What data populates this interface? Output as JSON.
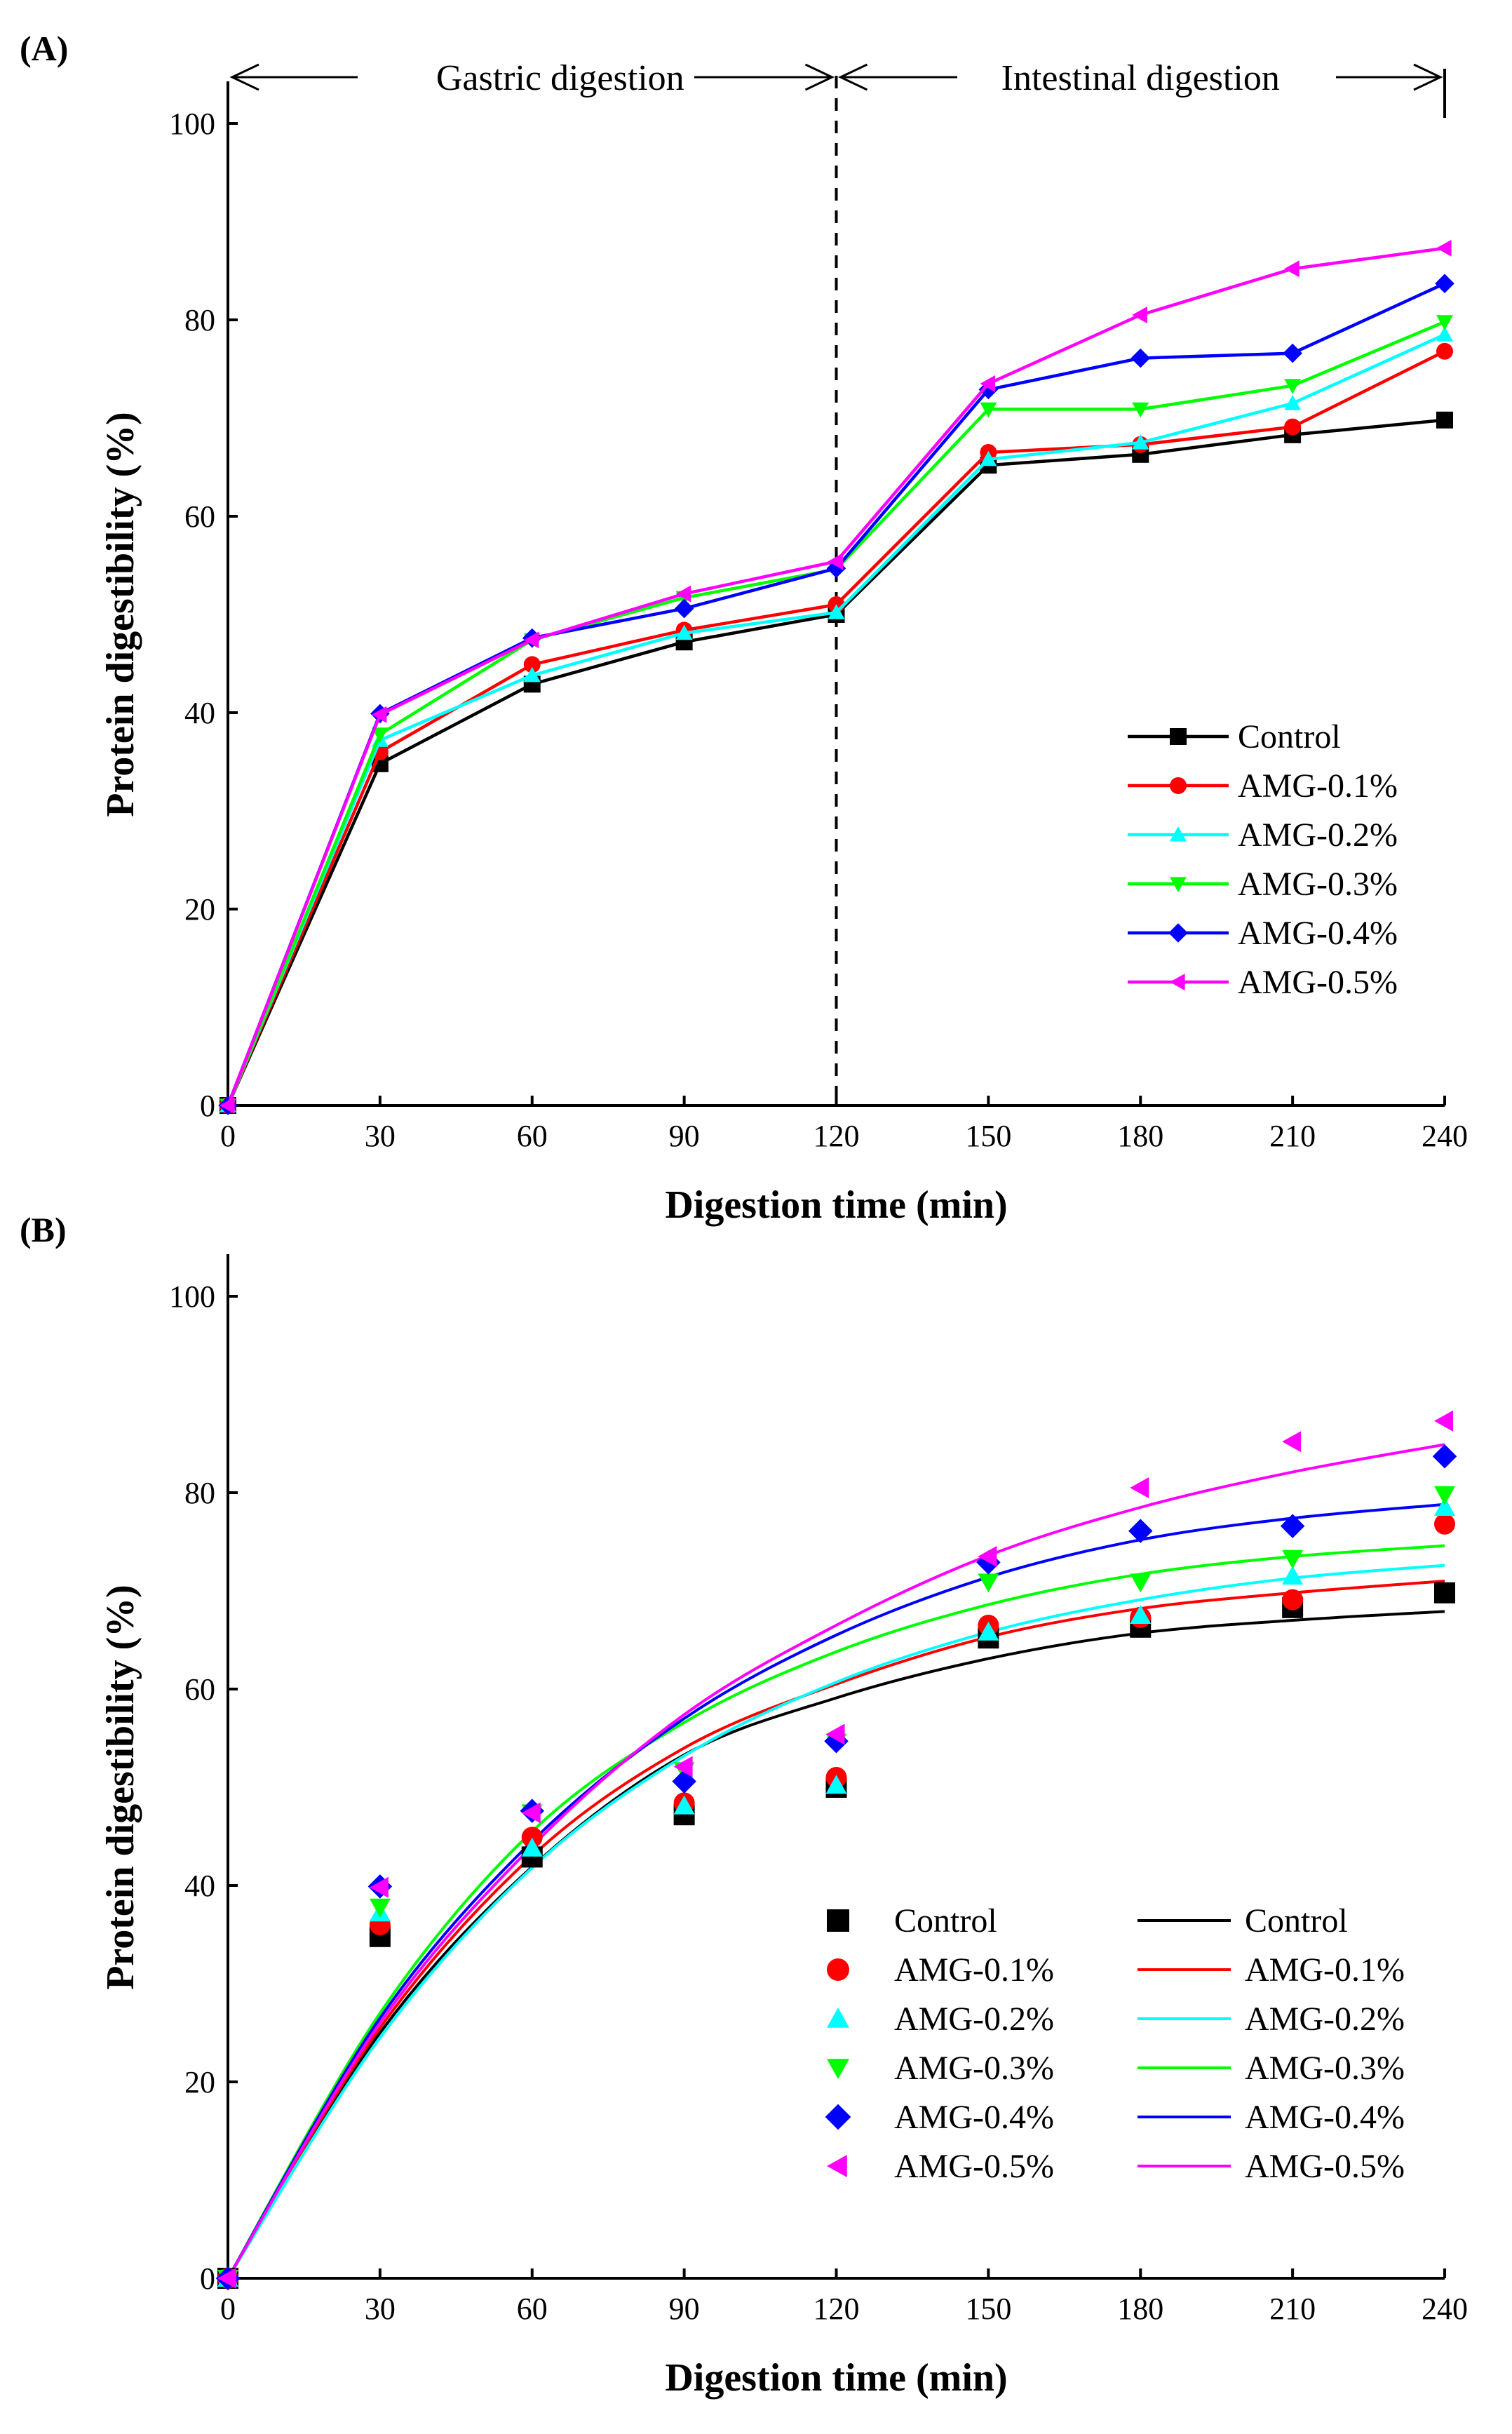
{
  "chart_data": [
    {
      "panel": "(A)",
      "type": "line",
      "xlabel": "Digestion time (min)",
      "ylabel": "Protein digestibility (%)",
      "xlim": [
        0,
        240
      ],
      "ylim": [
        0,
        100
      ],
      "x_ticks": [
        0,
        30,
        60,
        90,
        120,
        150,
        180,
        210,
        240
      ],
      "y_ticks": [
        0,
        20,
        40,
        60,
        80,
        100
      ],
      "annotations": {
        "gastric": "Gastric digestion",
        "intestinal": "Intestinal digestion",
        "divider_x": 120
      },
      "legend_position": "lower-right",
      "x": [
        0,
        30,
        60,
        90,
        120,
        150,
        180,
        210,
        240
      ],
      "series": [
        {
          "name": "Control",
          "color": "#000000",
          "marker": "square",
          "values": [
            0,
            34.8,
            42.9,
            47.2,
            50.0,
            65.2,
            66.3,
            68.3,
            69.8
          ]
        },
        {
          "name": "AMG-0.1%",
          "color": "#ff0000",
          "marker": "circle",
          "values": [
            0,
            36.0,
            44.9,
            48.4,
            51.0,
            66.5,
            67.3,
            69.1,
            76.8
          ]
        },
        {
          "name": "AMG-0.2%",
          "color": "#00ffff",
          "marker": "triangle-up",
          "values": [
            0,
            37.2,
            43.8,
            48.1,
            50.2,
            65.8,
            67.5,
            71.5,
            78.5
          ]
        },
        {
          "name": "AMG-0.3%",
          "color": "#00ff00",
          "marker": "triangle-down",
          "values": [
            0,
            37.8,
            47.4,
            51.7,
            54.6,
            70.9,
            70.9,
            73.3,
            79.8
          ]
        },
        {
          "name": "AMG-0.4%",
          "color": "#0000ff",
          "marker": "diamond",
          "values": [
            0,
            39.9,
            47.6,
            50.6,
            54.7,
            72.9,
            76.1,
            76.6,
            83.7
          ]
        },
        {
          "name": "AMG-0.5%",
          "color": "#ff00ff",
          "marker": "triangle-left",
          "values": [
            0,
            39.8,
            47.4,
            52.1,
            55.4,
            73.5,
            80.5,
            85.2,
            87.3
          ]
        }
      ]
    },
    {
      "panel": "(B)",
      "type": "scatter",
      "xlabel": "Digestion time (min)",
      "ylabel": "Protein digestibility (%)",
      "xlim": [
        0,
        240
      ],
      "ylim": [
        0,
        100
      ],
      "x_ticks": [
        0,
        30,
        60,
        90,
        120,
        150,
        180,
        210,
        240
      ],
      "y_ticks": [
        0,
        20,
        40,
        60,
        80,
        100
      ],
      "legend_position": "lower-right",
      "x": [
        0,
        30,
        60,
        90,
        120,
        150,
        180,
        210,
        240
      ],
      "points": [
        {
          "name": "Control",
          "color": "#000000",
          "marker": "square",
          "values": [
            0,
            34.8,
            42.9,
            47.2,
            50.0,
            65.2,
            66.3,
            68.3,
            69.8
          ]
        },
        {
          "name": "AMG-0.1%",
          "color": "#ff0000",
          "marker": "circle",
          "values": [
            0,
            36.0,
            44.9,
            48.4,
            51.0,
            66.5,
            67.3,
            69.1,
            76.8
          ]
        },
        {
          "name": "AMG-0.2%",
          "color": "#00ffff",
          "marker": "triangle-up",
          "values": [
            0,
            37.2,
            43.8,
            48.1,
            50.2,
            65.8,
            67.5,
            71.5,
            78.5
          ]
        },
        {
          "name": "AMG-0.3%",
          "color": "#00ff00",
          "marker": "triangle-down",
          "values": [
            0,
            37.8,
            47.4,
            51.7,
            54.6,
            70.9,
            70.9,
            73.3,
            79.8
          ]
        },
        {
          "name": "AMG-0.4%",
          "color": "#0000ff",
          "marker": "diamond",
          "values": [
            0,
            39.9,
            47.6,
            50.6,
            54.7,
            72.9,
            76.1,
            76.6,
            83.7
          ]
        },
        {
          "name": "AMG-0.5%",
          "color": "#ff00ff",
          "marker": "triangle-left",
          "values": [
            0,
            39.8,
            47.4,
            52.1,
            55.4,
            73.5,
            80.5,
            85.2,
            87.3
          ]
        }
      ],
      "fit_x": [
        0,
        30,
        60,
        90,
        120,
        150,
        180,
        210,
        240
      ],
      "fits": [
        {
          "name": "Control",
          "color": "#000000",
          "values": [
            0,
            25.0,
            41.9,
            53.3,
            59.1,
            63.1,
            65.7,
            67.0,
            67.9
          ]
        },
        {
          "name": "AMG-0.1%",
          "color": "#ff0000",
          "values": [
            0,
            25.5,
            43.0,
            54.0,
            60.5,
            65.3,
            68.2,
            69.8,
            71.0
          ]
        },
        {
          "name": "AMG-0.2%",
          "color": "#00ffff",
          "values": [
            0,
            24.5,
            41.8,
            53.2,
            60.7,
            65.8,
            69.1,
            71.3,
            72.6
          ]
        },
        {
          "name": "AMG-0.3%",
          "color": "#00ff00",
          "values": [
            0,
            27.0,
            45.5,
            56.6,
            63.8,
            68.6,
            71.7,
            73.5,
            74.6
          ]
        },
        {
          "name": "AMG-0.4%",
          "color": "#0000ff",
          "values": [
            0,
            26.5,
            44.5,
            57.0,
            65.5,
            71.4,
            75.2,
            77.4,
            78.8
          ]
        },
        {
          "name": "AMG-0.5%",
          "color": "#ff00ff",
          "values": [
            0,
            26.0,
            44.0,
            57.4,
            66.5,
            73.6,
            78.5,
            82.1,
            84.9
          ]
        }
      ]
    }
  ]
}
